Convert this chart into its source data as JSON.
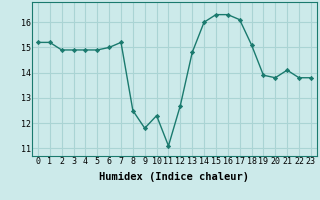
{
  "x": [
    0,
    1,
    2,
    3,
    4,
    5,
    6,
    7,
    8,
    9,
    10,
    11,
    12,
    13,
    14,
    15,
    16,
    17,
    18,
    19,
    20,
    21,
    22,
    23
  ],
  "y": [
    15.2,
    15.2,
    14.9,
    14.9,
    14.9,
    14.9,
    15.0,
    15.2,
    12.5,
    11.8,
    12.3,
    11.1,
    12.7,
    14.8,
    16.0,
    16.3,
    16.3,
    16.1,
    15.1,
    13.9,
    13.8,
    14.1,
    13.8,
    13.8
  ],
  "xlabel": "Humidex (Indice chaleur)",
  "xlim": [
    -0.5,
    23.5
  ],
  "ylim": [
    10.7,
    16.8
  ],
  "yticks": [
    11,
    12,
    13,
    14,
    15,
    16
  ],
  "xticks": [
    0,
    1,
    2,
    3,
    4,
    5,
    6,
    7,
    8,
    9,
    10,
    11,
    12,
    13,
    14,
    15,
    16,
    17,
    18,
    19,
    20,
    21,
    22,
    23
  ],
  "xtick_labels": [
    "0",
    "1",
    "2",
    "3",
    "4",
    "5",
    "6",
    "7",
    "8",
    "9",
    "10",
    "11",
    "12",
    "13",
    "14",
    "15",
    "16",
    "17",
    "18",
    "19",
    "20",
    "21",
    "22",
    "23"
  ],
  "line_color": "#1a7a6e",
  "marker": "D",
  "marker_size": 2.2,
  "bg_color": "#cceaea",
  "grid_color": "#aad4d4",
  "xlabel_fontsize": 7.5,
  "tick_fontsize": 6.0
}
